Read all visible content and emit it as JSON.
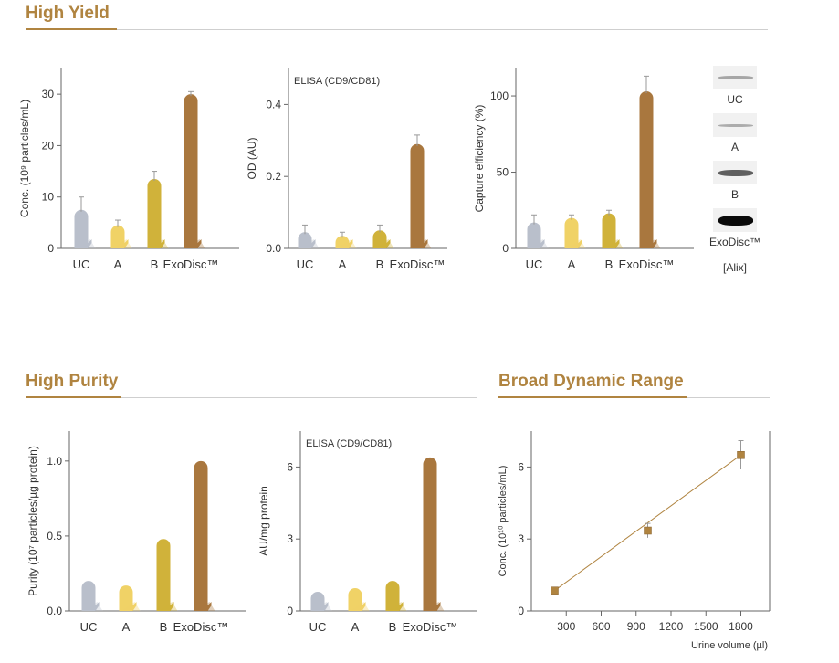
{
  "sections": {
    "yield_title": "High Yield",
    "purity_title": "High Purity",
    "range_title": "Broad Dynamic Range"
  },
  "colors": {
    "accent": "#b08440",
    "uc": "#b9bfcb",
    "a": "#f0d266",
    "b": "#d0b23a",
    "exodisc": "#a9773e"
  },
  "chart_data": [
    {
      "id": "yield-conc",
      "type": "bar",
      "categories": [
        "UC",
        "A",
        "B",
        "ExoDisc™"
      ],
      "values": [
        7.5,
        4.5,
        13.5,
        30
      ],
      "errors": [
        2.5,
        1.0,
        1.5,
        0.5
      ],
      "ylabel": "Conc. (10⁹ particles/mL)",
      "annotation": "",
      "yticks": [
        0,
        10,
        20,
        30
      ],
      "ylim": [
        0,
        35
      ]
    },
    {
      "id": "yield-elisa",
      "type": "bar",
      "categories": [
        "UC",
        "A",
        "B",
        "ExoDisc™"
      ],
      "values": [
        0.045,
        0.035,
        0.05,
        0.29
      ],
      "errors": [
        0.02,
        0.01,
        0.015,
        0.025
      ],
      "ylabel": "OD (AU)",
      "annotation": "ELISA (CD9/CD81)",
      "yticks": [
        0.0,
        0.2,
        0.4
      ],
      "ytick_labels": [
        "0.0",
        "0.2",
        "0.4"
      ],
      "ylim": [
        0,
        0.5
      ]
    },
    {
      "id": "yield-capture",
      "type": "bar",
      "categories": [
        "UC",
        "A",
        "B",
        "ExoDisc™"
      ],
      "values": [
        17,
        20,
        23,
        103
      ],
      "errors": [
        5,
        2,
        2,
        10
      ],
      "ylabel": "Capture efficiency (%)",
      "annotation": "",
      "yticks": [
        0,
        50,
        100
      ],
      "ylim": [
        0,
        118
      ]
    },
    {
      "id": "purity",
      "type": "bar",
      "categories": [
        "UC",
        "A",
        "B",
        "ExoDisc™"
      ],
      "values": [
        0.2,
        0.17,
        0.48,
        1.0
      ],
      "errors": [
        0,
        0,
        0,
        0
      ],
      "ylabel": "Purity (10⁷ particles/µg protein)",
      "annotation": "",
      "yticks": [
        0.0,
        0.5,
        1.0
      ],
      "ytick_labels": [
        "0.0",
        "0.5",
        "1.0"
      ],
      "ylim": [
        0,
        1.2
      ]
    },
    {
      "id": "purity-elisa",
      "type": "bar",
      "categories": [
        "UC",
        "A",
        "B",
        "ExoDisc™"
      ],
      "values": [
        0.8,
        0.95,
        1.25,
        6.4
      ],
      "errors": [
        0,
        0,
        0,
        0
      ],
      "ylabel": "AU/mg protein",
      "annotation": "ELISA (CD9/CD81)",
      "yticks": [
        0,
        3,
        6
      ],
      "ylim": [
        0,
        7.5
      ]
    },
    {
      "id": "dynamic-range",
      "type": "scatter",
      "x": [
        200,
        1000,
        1800
      ],
      "y": [
        0.85,
        3.35,
        6.5
      ],
      "errors": [
        0.1,
        0.3,
        0.6
      ],
      "xlabel": "Urine volume (µl)",
      "ylabel": "Conc. (10¹⁰ particles/mL)",
      "xticks": [
        300,
        600,
        900,
        1200,
        1500,
        1800
      ],
      "yticks": [
        0,
        3,
        6
      ],
      "xlim": [
        0,
        2000
      ],
      "ylim": [
        0,
        7.5
      ],
      "fit_line": true
    }
  ],
  "western_blot": {
    "lanes": [
      {
        "label": "UC",
        "intensity": 0.18
      },
      {
        "label": "A",
        "intensity": 0.15
      },
      {
        "label": "B",
        "intensity": 0.55
      },
      {
        "label": "ExoDisc™",
        "intensity": 1.0
      }
    ],
    "caption": "[Alix]"
  }
}
